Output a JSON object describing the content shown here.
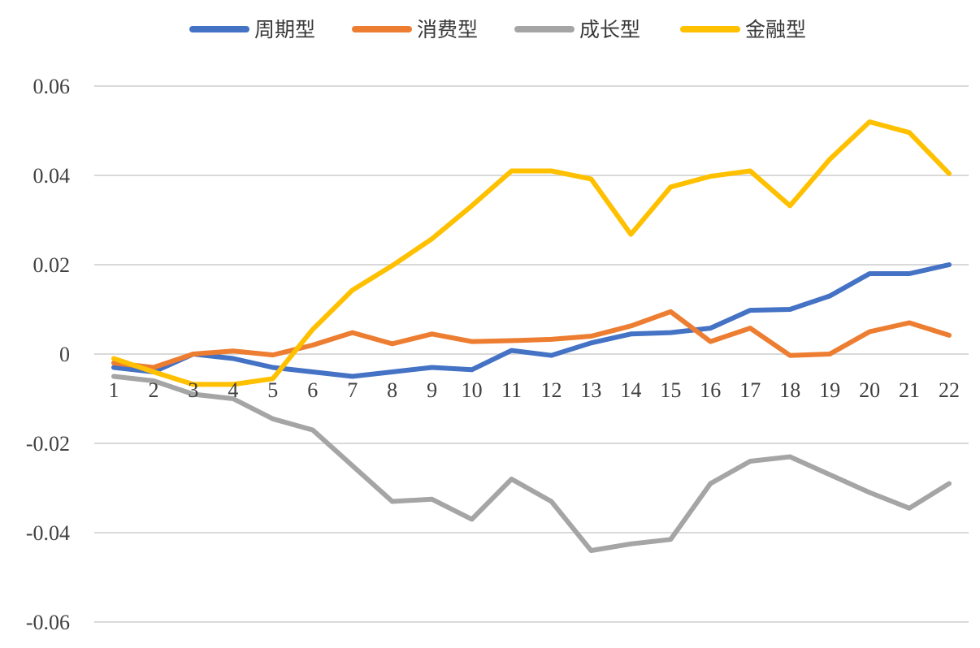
{
  "chart_data": {
    "type": "line",
    "title": "",
    "xlabel": "",
    "ylabel": "",
    "x": [
      1,
      2,
      3,
      4,
      5,
      6,
      7,
      8,
      9,
      10,
      11,
      12,
      13,
      14,
      15,
      16,
      17,
      18,
      19,
      20,
      21,
      22
    ],
    "ylim": [
      -0.06,
      0.06
    ],
    "yticks": [
      0.06,
      0.04,
      0.02,
      0,
      -0.02,
      -0.04,
      -0.06
    ],
    "ytick_labels": [
      "0.06",
      "0.04",
      "0.02",
      "0",
      "-0.02",
      "-0.04",
      "-0.06"
    ],
    "grid": true,
    "legend_position": "top",
    "series": [
      {
        "name": "周期型",
        "color": "#4472C4",
        "values": [
          -0.003,
          -0.004,
          0.0,
          -0.001,
          -0.003,
          -0.004,
          -0.005,
          -0.004,
          -0.003,
          -0.0035,
          0.0008,
          -0.0003,
          0.0025,
          0.0045,
          0.0048,
          0.0058,
          0.0098,
          0.01,
          0.013,
          0.018,
          0.018,
          0.02
        ]
      },
      {
        "name": "消费型",
        "color": "#ED7D31",
        "values": [
          -0.002,
          -0.003,
          0.0,
          0.0007,
          -0.0002,
          0.002,
          0.0048,
          0.0023,
          0.0045,
          0.0028,
          0.003,
          0.0033,
          0.004,
          0.0063,
          0.0095,
          0.0028,
          0.0058,
          -0.0003,
          0.0,
          0.005,
          0.007,
          0.0042
        ]
      },
      {
        "name": "成长型",
        "color": "#A5A5A5",
        "values": [
          -0.005,
          -0.006,
          -0.009,
          -0.01,
          -0.0145,
          -0.017,
          -0.025,
          -0.033,
          -0.0325,
          -0.037,
          -0.028,
          -0.033,
          -0.044,
          -0.0425,
          -0.0415,
          -0.029,
          -0.024,
          -0.023,
          -0.027,
          -0.031,
          -0.0345,
          -0.029
        ]
      },
      {
        "name": "金融型",
        "color": "#FFC000",
        "values": [
          -0.001,
          -0.004,
          -0.0068,
          -0.0068,
          -0.0055,
          0.0055,
          0.0143,
          0.0198,
          0.0258,
          0.0332,
          0.041,
          0.041,
          0.0392,
          0.0268,
          0.0374,
          0.0398,
          0.041,
          0.0332,
          0.0436,
          0.052,
          0.0496,
          0.0404
        ]
      }
    ]
  }
}
